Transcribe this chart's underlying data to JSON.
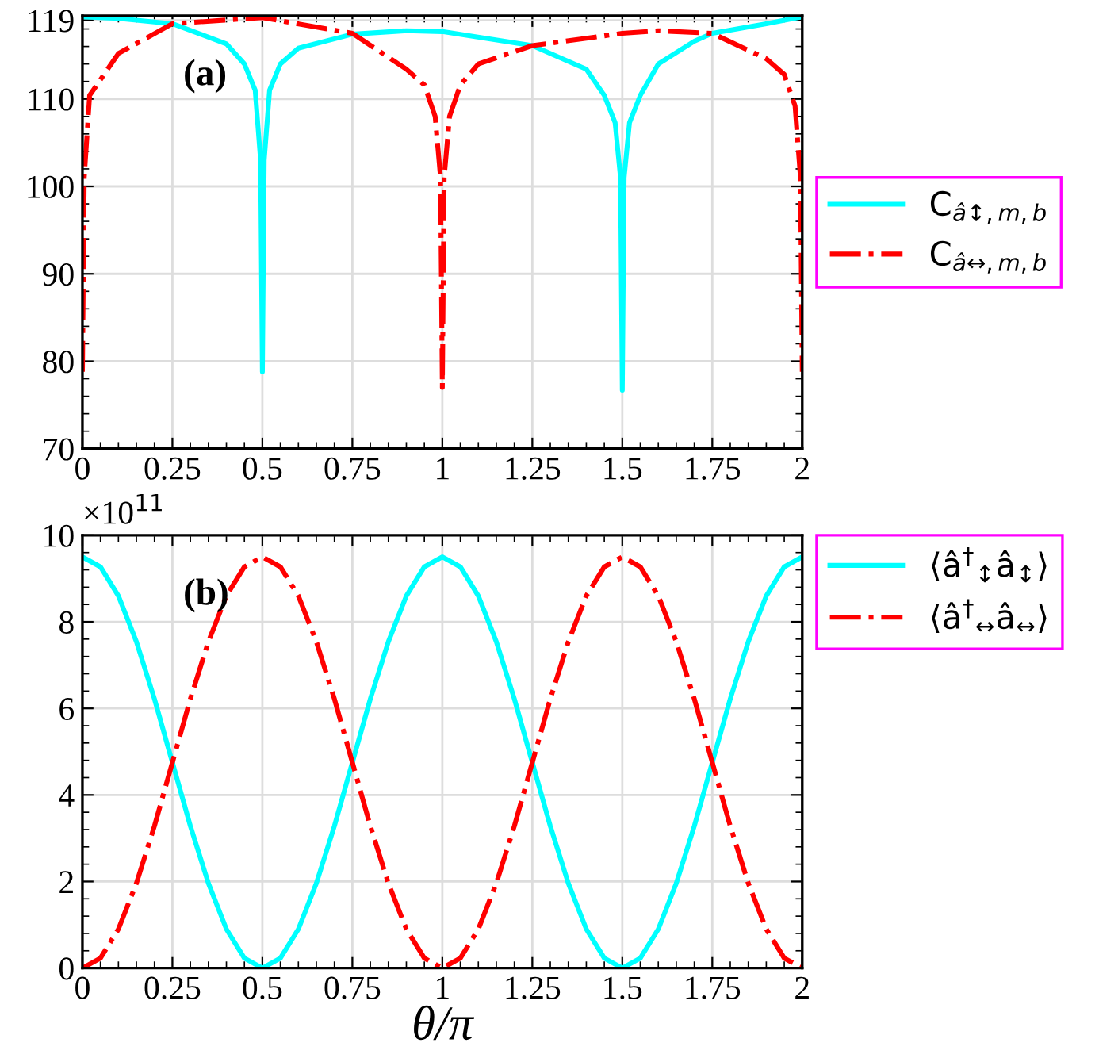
{
  "chart_data": [
    {
      "type": "line",
      "annotations": [
        "(a)"
      ],
      "xlim": [
        0,
        2
      ],
      "xticks": [
        0,
        0.25,
        0.5,
        0.75,
        1,
        1.25,
        1.5,
        1.75,
        2
      ],
      "ylim": [
        70,
        119.5
      ],
      "yticks": [
        70,
        80,
        90,
        100,
        110,
        119
      ],
      "grid": true,
      "legend": "right",
      "marker": "none",
      "series": [
        {
          "name": "C$_{â↕,m,b}$",
          "color": "#00ffff",
          "line_style": "solid",
          "x": [
            0,
            0.1,
            0.25,
            0.4,
            0.45,
            0.48,
            0.495,
            0.5,
            0.505,
            0.52,
            0.55,
            0.6,
            0.75,
            0.9,
            1,
            1.25,
            1.4,
            1.45,
            1.48,
            1.495,
            1.5,
            1.505,
            1.52,
            1.55,
            1.6,
            1.7,
            1.75,
            1.9,
            2
          ],
          "values": [
            119.4,
            119.2,
            118.6,
            116.3,
            114.0,
            111.0,
            103,
            78.8,
            103,
            111.0,
            114.0,
            115.8,
            117.4,
            117.8,
            117.7,
            116.1,
            113.4,
            110.4,
            107.3,
            101,
            76.7,
            101,
            107.3,
            110.4,
            114.0,
            116.6,
            117.5,
            118.6,
            119.4
          ]
        },
        {
          "name": "C$_{â↔,m,b}$",
          "color": "#ff0000",
          "line_style": "dashdot",
          "x": [
            0,
            0.005,
            0.02,
            0.1,
            0.25,
            0.5,
            0.75,
            0.9,
            0.95,
            0.98,
            0.995,
            1,
            1.005,
            1.02,
            1.05,
            1.1,
            1.25,
            1.5,
            1.6,
            1.75,
            1.9,
            1.95,
            1.98,
            1.995,
            2
          ],
          "values": [
            78.8,
            101,
            110.4,
            115.2,
            118.6,
            119.3,
            117.5,
            113.4,
            111.6,
            108.0,
            101,
            77.0,
            101,
            108.0,
            111.6,
            114.0,
            116.1,
            117.5,
            117.8,
            117.5,
            114.6,
            112.8,
            109.2,
            101,
            78.8
          ]
        }
      ]
    },
    {
      "type": "line",
      "annotations": [
        "(b)",
        "×10$^{11}$"
      ],
      "xlabel": "θ/π",
      "xlim": [
        0,
        2
      ],
      "xticks": [
        0,
        0.25,
        0.5,
        0.75,
        1,
        1.25,
        1.5,
        1.75,
        2
      ],
      "ylim": [
        0,
        10
      ],
      "yticks": [
        0,
        2,
        4,
        6,
        8,
        10
      ],
      "grid": true,
      "legend": "top right",
      "marker": "none",
      "x": [
        0,
        0.05,
        0.1,
        0.15,
        0.2,
        0.25,
        0.3,
        0.35,
        0.4,
        0.45,
        0.5,
        0.55,
        0.6,
        0.65,
        0.7,
        0.75,
        0.8,
        0.85,
        0.9,
        0.95,
        1,
        1.05,
        1.1,
        1.15,
        1.2,
        1.25,
        1.3,
        1.35,
        1.4,
        1.45,
        1.5,
        1.55,
        1.6,
        1.65,
        1.7,
        1.75,
        1.8,
        1.85,
        1.9,
        1.95,
        2
      ],
      "series": [
        {
          "name": "⟨â$^{†}$$_{↕}$â$_{↕}$⟩",
          "color": "#00ffff",
          "line_style": "solid",
          "values": [
            9.5,
            9.27,
            8.6,
            7.54,
            6.22,
            4.75,
            3.28,
            1.96,
            0.9,
            0.23,
            0,
            0.23,
            0.9,
            1.96,
            3.28,
            4.75,
            6.22,
            7.54,
            8.6,
            9.27,
            9.5,
            9.27,
            8.6,
            7.54,
            6.22,
            4.75,
            3.28,
            1.96,
            0.9,
            0.23,
            0,
            0.23,
            0.9,
            1.96,
            3.28,
            4.75,
            6.22,
            7.54,
            8.6,
            9.27,
            9.5
          ]
        },
        {
          "name": "⟨â$^{†}$$_{↔}$â$_{↔}$⟩",
          "color": "#ff0000",
          "line_style": "dashdot",
          "values": [
            0,
            0.23,
            0.9,
            1.96,
            3.28,
            4.75,
            6.22,
            7.54,
            8.6,
            9.27,
            9.5,
            9.27,
            8.6,
            7.54,
            6.22,
            4.75,
            3.28,
            1.96,
            0.9,
            0.23,
            0,
            0.23,
            0.9,
            1.96,
            3.28,
            4.75,
            6.22,
            7.54,
            8.6,
            9.27,
            9.5,
            9.27,
            8.6,
            7.54,
            6.22,
            4.75,
            3.28,
            1.96,
            0.9,
            0.23,
            0
          ]
        }
      ]
    }
  ]
}
